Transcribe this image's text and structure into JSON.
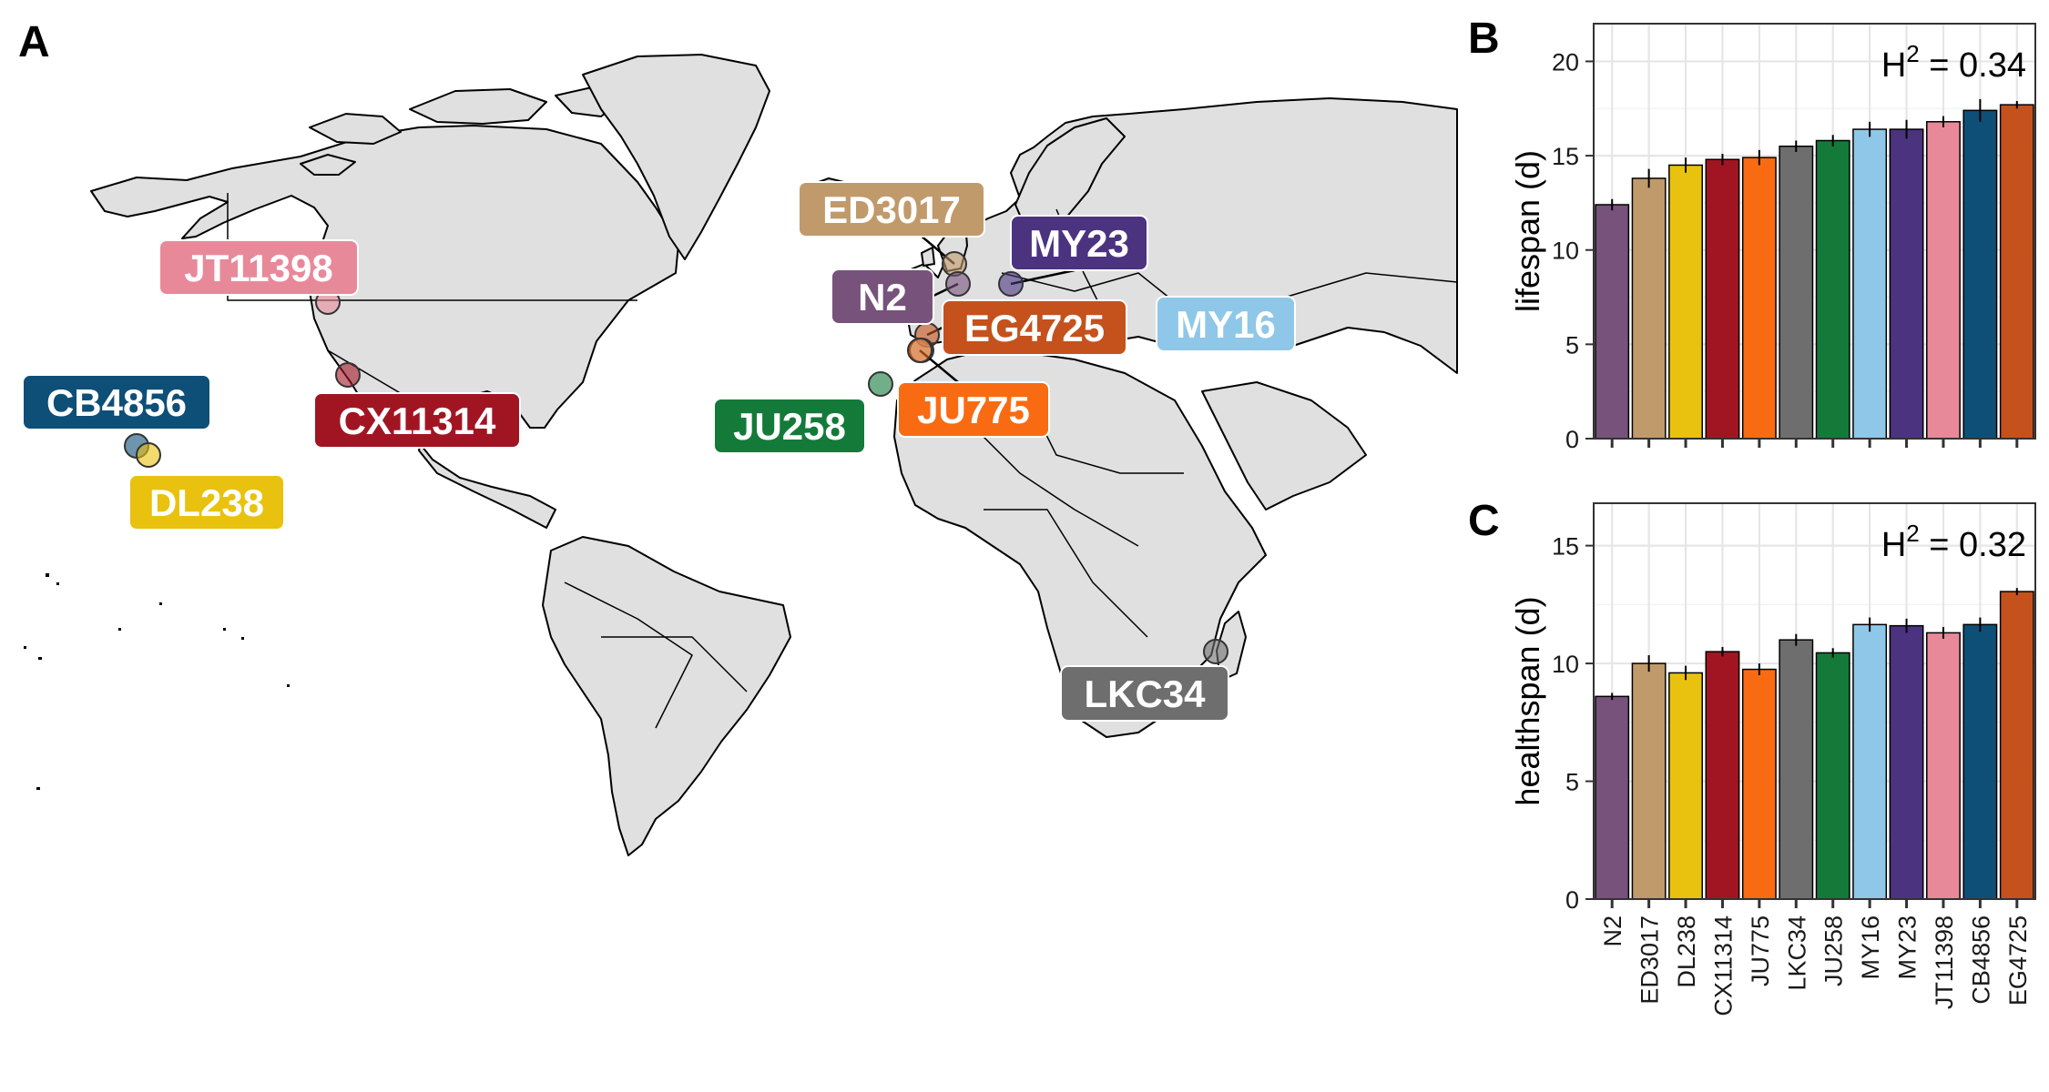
{
  "panels": {
    "a": "A",
    "b": "B",
    "c": "C"
  },
  "map": {
    "strains": [
      {
        "name": "JT11398",
        "color": "#E8899A"
      },
      {
        "name": "CB4856",
        "color": "#0E4F78"
      },
      {
        "name": "DL238",
        "color": "#E8C20E"
      },
      {
        "name": "CX11314",
        "color": "#A11523"
      },
      {
        "name": "ED3017",
        "color": "#C19A6B"
      },
      {
        "name": "N2",
        "color": "#77527B"
      },
      {
        "name": "MY23",
        "color": "#4B3380"
      },
      {
        "name": "EG4725",
        "color": "#C5511D"
      },
      {
        "name": "MY16",
        "color": "#8FC7E8"
      },
      {
        "name": "JU258",
        "color": "#137A3A"
      },
      {
        "name": "JU775",
        "color": "#F96B12"
      },
      {
        "name": "LKC34",
        "color": "#6E6E6E"
      }
    ]
  },
  "chart_data": [
    {
      "type": "bar",
      "panel": "B",
      "ylabel": "lifespan (d)",
      "annotation": {
        "base": "H",
        "sup": "2",
        "rest": " = 0.34"
      },
      "ylim": [
        0,
        22
      ],
      "yticks": [
        0,
        5,
        10,
        15,
        20
      ],
      "categories": [
        "N2",
        "ED3017",
        "DL238",
        "CX11314",
        "JU775",
        "LKC34",
        "JU258",
        "MY16",
        "MY23",
        "JT11398",
        "CB4856",
        "EG4725"
      ],
      "values": [
        12.4,
        13.8,
        14.5,
        14.8,
        14.9,
        15.5,
        15.8,
        16.4,
        16.4,
        16.8,
        17.4,
        17.7
      ],
      "errors": [
        0.3,
        0.5,
        0.4,
        0.3,
        0.4,
        0.3,
        0.3,
        0.4,
        0.5,
        0.3,
        0.6,
        0.2
      ],
      "colors": [
        "#77527B",
        "#C19A6B",
        "#E8C20E",
        "#A11523",
        "#F96B12",
        "#6E6E6E",
        "#137A3A",
        "#8FC7E8",
        "#4B3380",
        "#E8899A",
        "#0E4F78",
        "#C5511D"
      ]
    },
    {
      "type": "bar",
      "panel": "C",
      "ylabel": "healthspan (d)",
      "annotation": {
        "base": "H",
        "sup": "2",
        "rest": " = 0.32"
      },
      "ylim": [
        0,
        16.8
      ],
      "yticks": [
        0,
        5,
        10,
        15
      ],
      "categories": [
        "N2",
        "ED3017",
        "DL238",
        "CX11314",
        "JU775",
        "LKC34",
        "JU258",
        "MY16",
        "MY23",
        "JT11398",
        "CB4856",
        "EG4725"
      ],
      "values": [
        8.6,
        10.0,
        9.6,
        10.5,
        9.75,
        11.0,
        10.45,
        11.65,
        11.6,
        11.3,
        11.65,
        13.05
      ],
      "errors": [
        0.15,
        0.35,
        0.3,
        0.2,
        0.25,
        0.25,
        0.2,
        0.3,
        0.3,
        0.25,
        0.3,
        0.15
      ],
      "colors": [
        "#77527B",
        "#C19A6B",
        "#E8C20E",
        "#A11523",
        "#F96B12",
        "#6E6E6E",
        "#137A3A",
        "#8FC7E8",
        "#4B3380",
        "#E8899A",
        "#0E4F78",
        "#C5511D"
      ]
    }
  ]
}
